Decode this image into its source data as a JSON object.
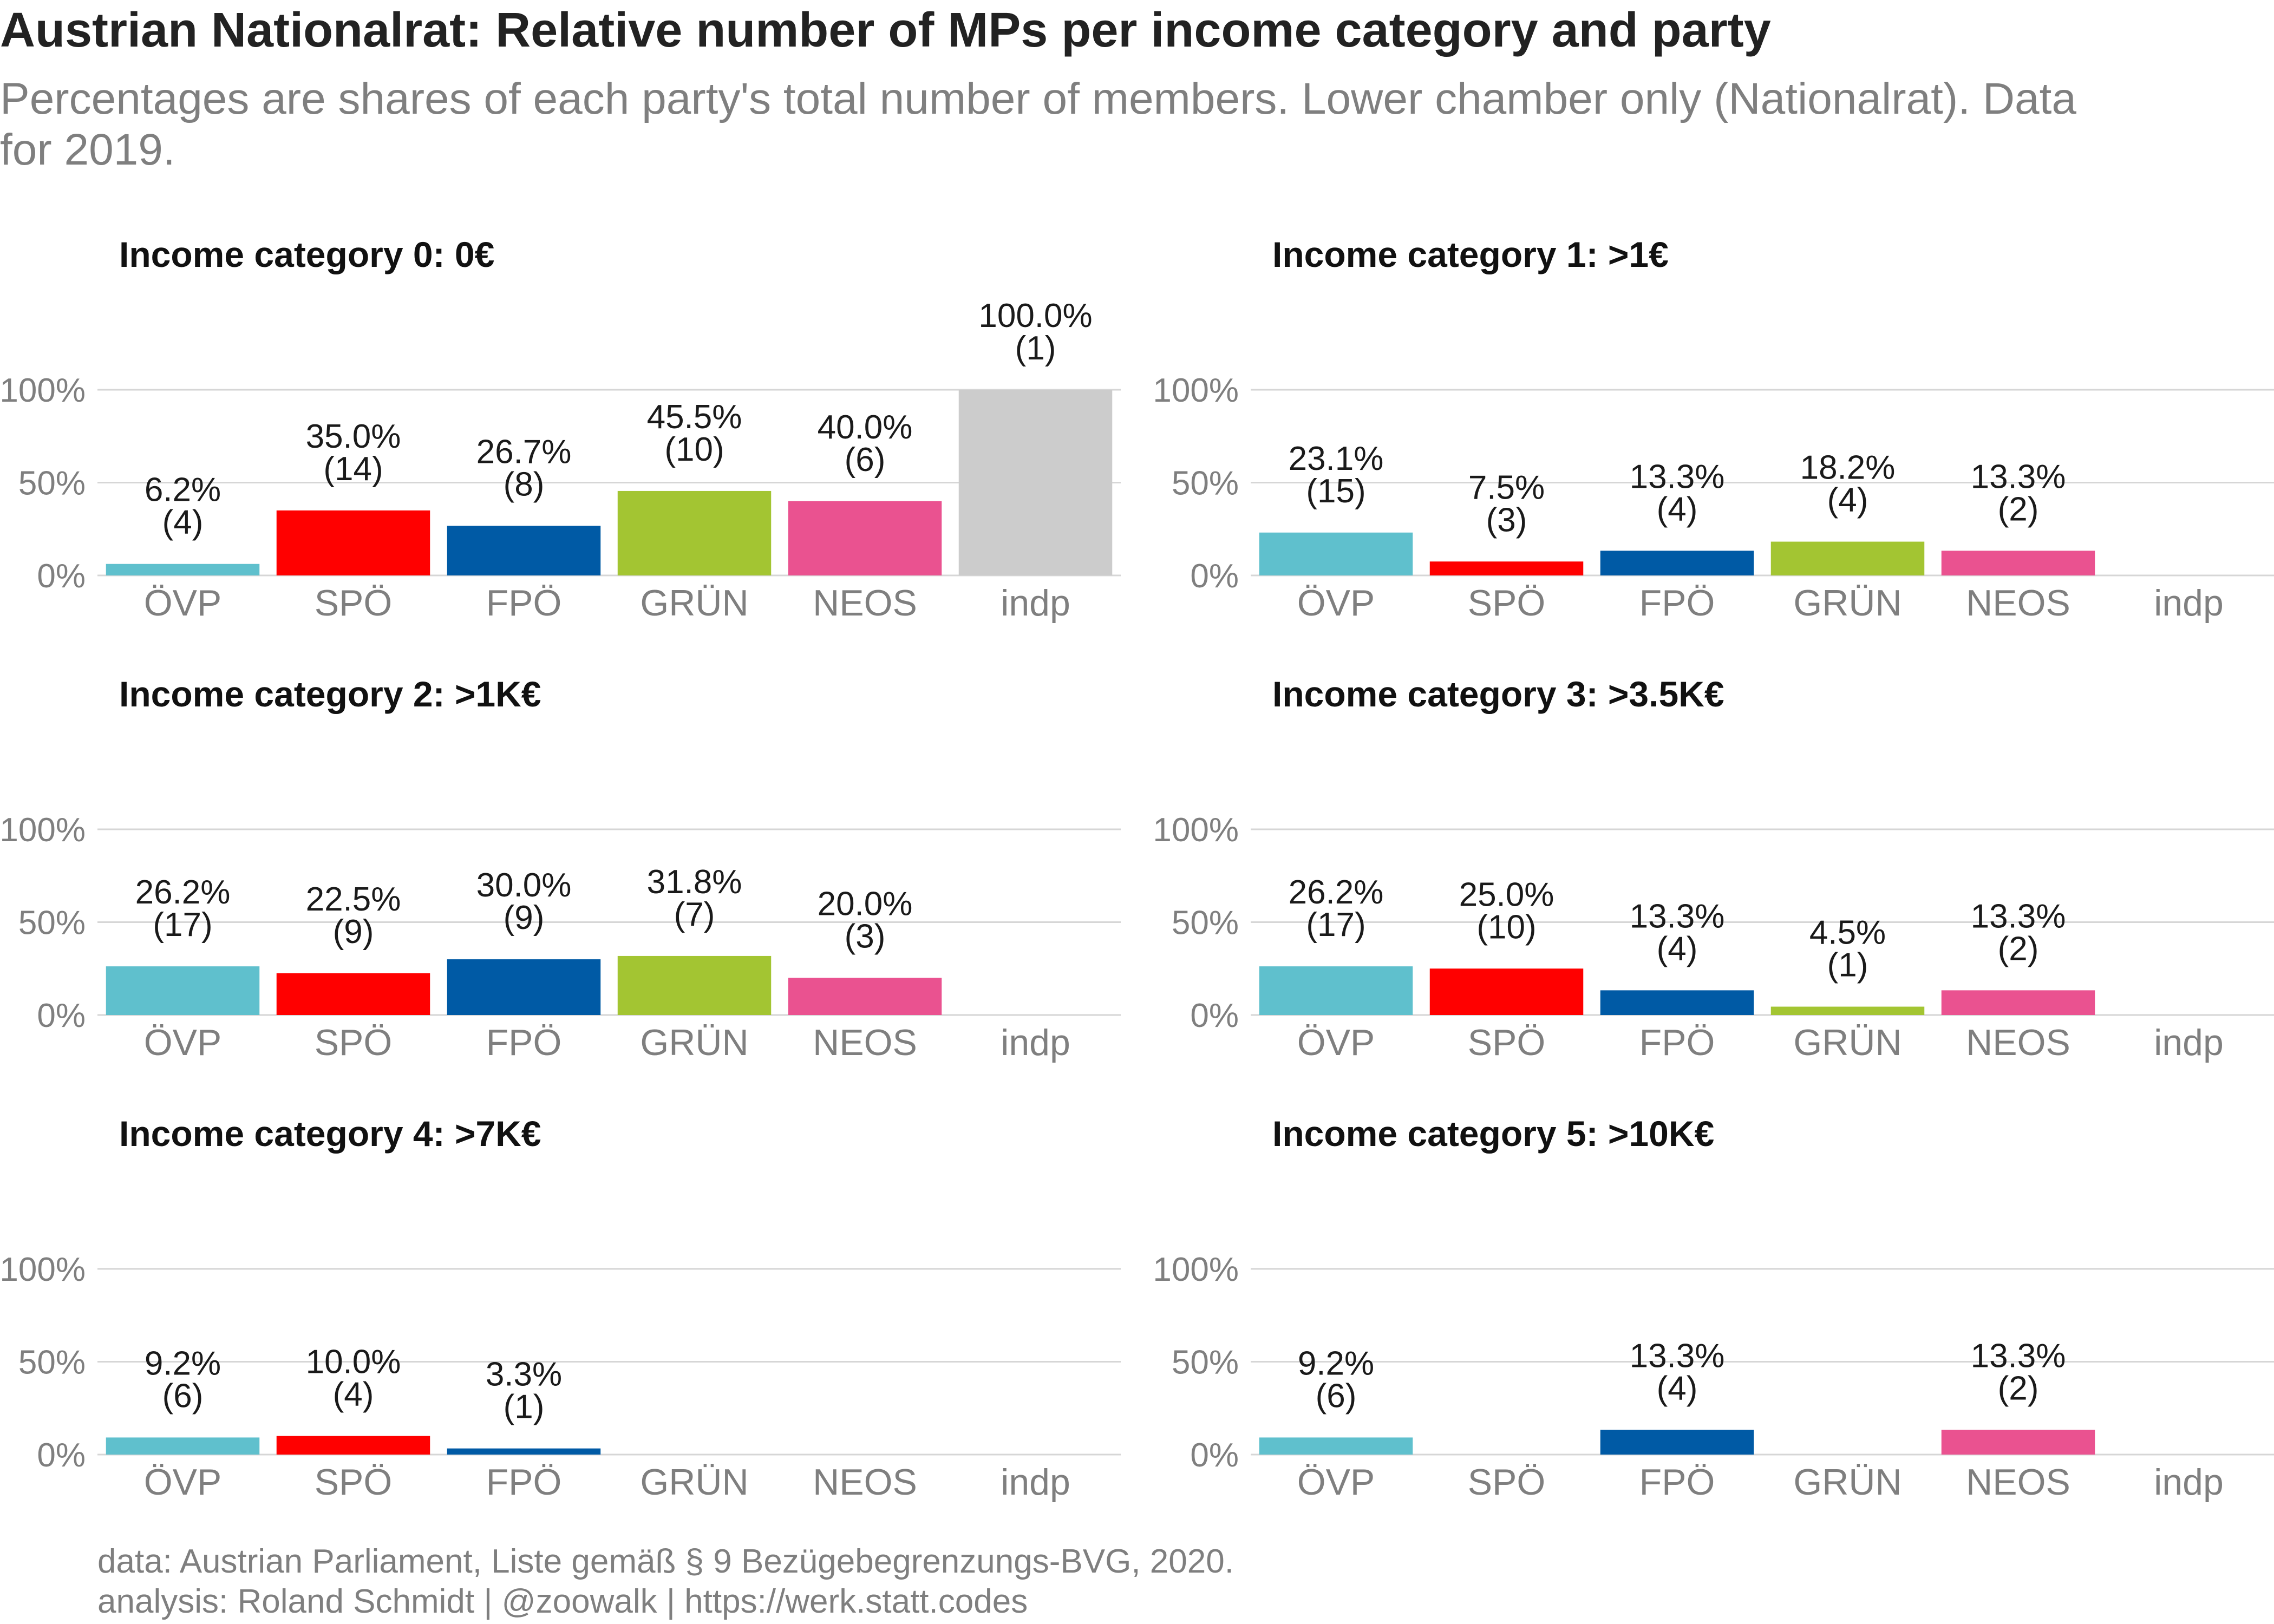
{
  "header": {
    "title": "Austrian Nationalrat: Relative number of MPs per income category and party",
    "subtitle": "Percentages are shares of each party's total number of members. Lower chamber only (Nationalrat). Data for 2019."
  },
  "footer": {
    "caption_line1": "data: Austrian Parliament, Liste gemäß § 9 Bezügebegrenzungs-BVG, 2020.",
    "caption_line2": "analysis: Roland Schmidt | @zoowalk | https://werk.statt.codes"
  },
  "chart_data": {
    "type": "bar",
    "categories": [
      "ÖVP",
      "SPÖ",
      "FPÖ",
      "GRÜN",
      "NEOS",
      "indp"
    ],
    "colors": {
      "ÖVP": "#5fc0cd",
      "SPÖ": "#ff0000",
      "FPÖ": "#005aa5",
      "GRÜN": "#a3c532",
      "NEOS": "#ea5290",
      "indp": "#cccccc"
    },
    "ylim": [
      0,
      100
    ],
    "yticks": [
      "0%",
      "50%",
      "100%"
    ],
    "gridlines": true,
    "panels": [
      {
        "title": "Income category 0: 0€",
        "values": [
          6.2,
          35.0,
          26.7,
          45.5,
          40.0,
          100.0
        ],
        "labels": [
          "6.2%",
          "35.0%",
          "26.7%",
          "45.5%",
          "40.0%",
          "100.0%"
        ],
        "counts": [
          "(4)",
          "(14)",
          "(8)",
          "(10)",
          "(6)",
          "(1)"
        ]
      },
      {
        "title": "Income category 1: >1€",
        "values": [
          23.1,
          7.5,
          13.3,
          18.2,
          13.3,
          null
        ],
        "labels": [
          "23.1%",
          "7.5%",
          "13.3%",
          "18.2%",
          "13.3%",
          null
        ],
        "counts": [
          "(15)",
          "(3)",
          "(4)",
          "(4)",
          "(2)",
          null
        ]
      },
      {
        "title": "Income category 2: >1K€",
        "values": [
          26.2,
          22.5,
          30.0,
          31.8,
          20.0,
          null
        ],
        "labels": [
          "26.2%",
          "22.5%",
          "30.0%",
          "31.8%",
          "20.0%",
          null
        ],
        "counts": [
          "(17)",
          "(9)",
          "(9)",
          "(7)",
          "(3)",
          null
        ]
      },
      {
        "title": "Income category 3: >3.5K€",
        "values": [
          26.2,
          25.0,
          13.3,
          4.5,
          13.3,
          null
        ],
        "labels": [
          "26.2%",
          "25.0%",
          "13.3%",
          "4.5%",
          "13.3%",
          null
        ],
        "counts": [
          "(17)",
          "(10)",
          "(4)",
          "(1)",
          "(2)",
          null
        ]
      },
      {
        "title": "Income category 4: >7K€",
        "values": [
          9.2,
          10.0,
          3.3,
          null,
          null,
          null
        ],
        "labels": [
          "9.2%",
          "10.0%",
          "3.3%",
          null,
          null,
          null
        ],
        "counts": [
          "(6)",
          "(4)",
          "(1)",
          null,
          null,
          null
        ]
      },
      {
        "title": "Income category 5: >10K€",
        "values": [
          9.2,
          null,
          13.3,
          null,
          13.3,
          null
        ],
        "labels": [
          "9.2%",
          null,
          "13.3%",
          null,
          "13.3%",
          null
        ],
        "counts": [
          "(6)",
          null,
          "(4)",
          null,
          "(2)",
          null
        ]
      }
    ]
  }
}
